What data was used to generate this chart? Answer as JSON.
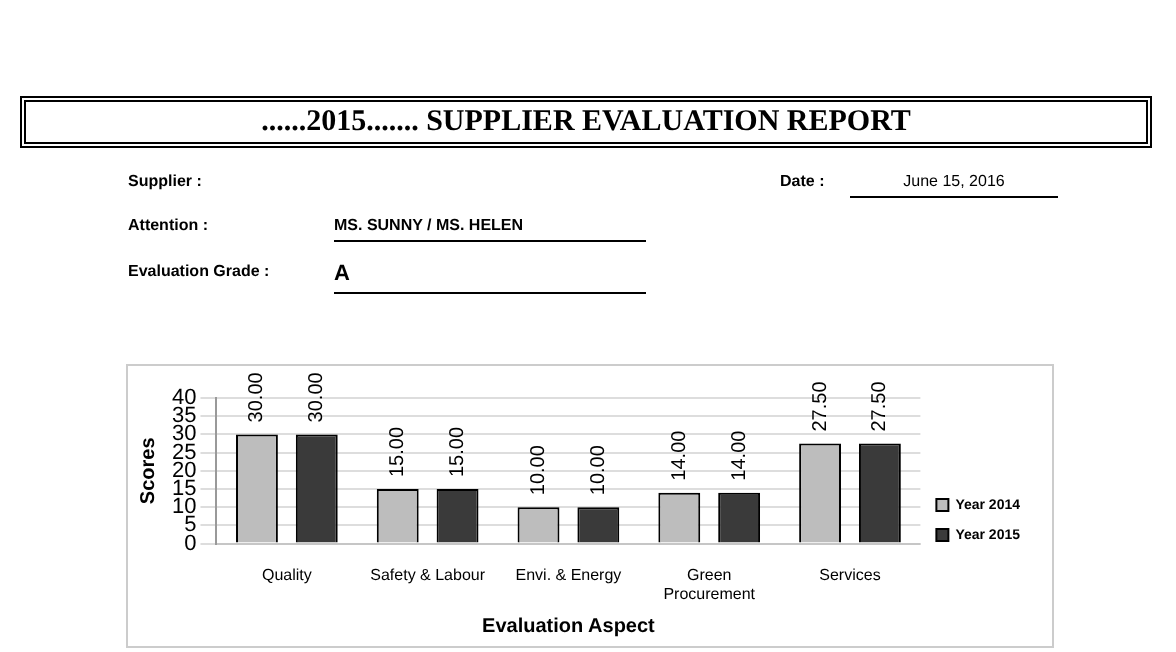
{
  "chart_data": {
    "type": "bar",
    "title": "......2015.......  SUPPLIER EVALUATION REPORT",
    "annotations": [
      "Supplier :",
      "Attention :",
      "MS. SUNNY / MS. HELEN",
      "Evaluation Grade :",
      "A",
      "Date  :",
      "June 15, 2016"
    ],
    "xlabel": "Evaluation Aspect",
    "ylabel": "Scores",
    "categories": [
      "Quality",
      "Safety & Labour",
      "Envi. & Energy",
      "Green Procurement",
      "Services"
    ],
    "series": [
      {
        "name": "Year 2014",
        "color": "#bdbdbd",
        "values": [
          30,
          15,
          10,
          14,
          27.5
        ],
        "value_labels": [
          "30.00",
          "15.00",
          "10.00",
          "14.00",
          "27.50"
        ]
      },
      {
        "name": "Year 2015",
        "color": "#3a3a3a",
        "values": [
          30,
          15,
          10,
          14,
          27.5
        ],
        "value_labels": [
          "30.00",
          "15.00",
          "10.00",
          "14.00",
          "27.50"
        ]
      }
    ],
    "ylim": [
      0,
      40
    ],
    "yticks": [
      0,
      5,
      10,
      15,
      20,
      25,
      30,
      35,
      40
    ],
    "grid": "y",
    "legend": "right"
  }
}
